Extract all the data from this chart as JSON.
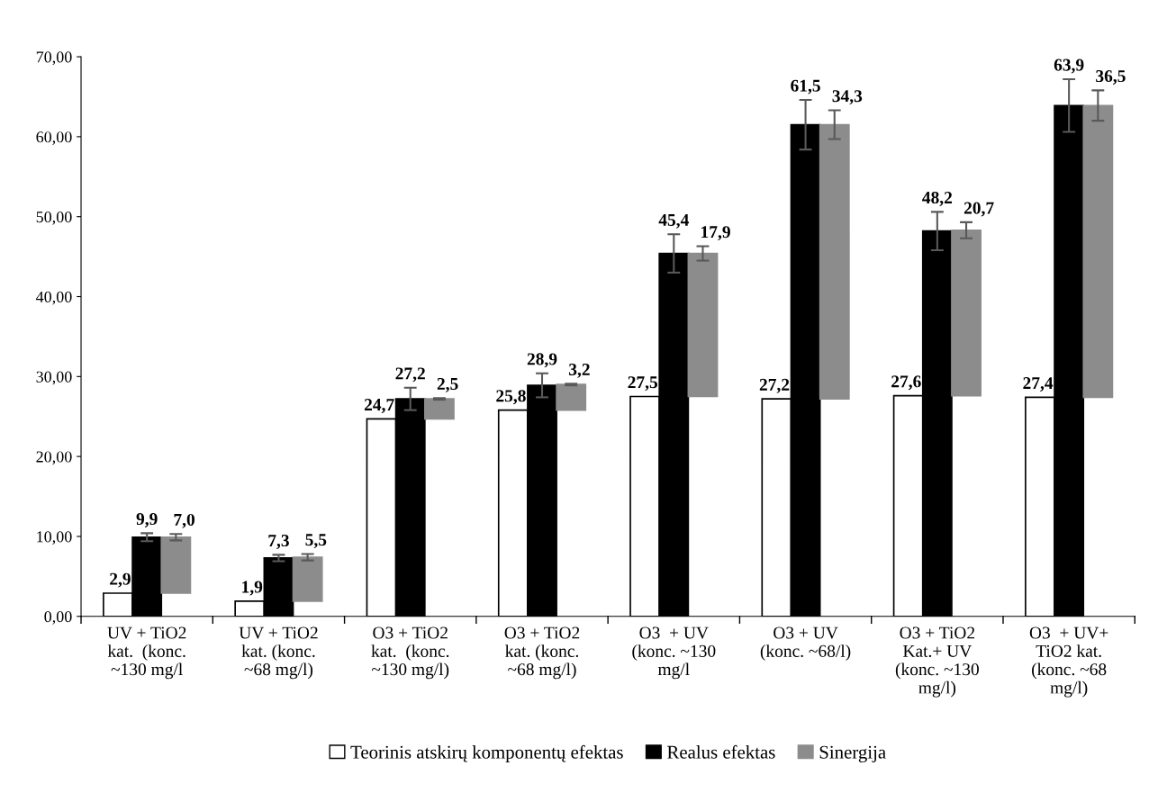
{
  "chart_data": {
    "type": "bar",
    "categories": [
      "UV + TiO2\nkat.  (konc.\n~130 mg/l",
      "UV + TiO2\nkat. (konc.\n~68 mg/l)",
      "O3 + TiO2\nkat.  (konc.\n~130 mg/l)",
      "O3 + TiO2\nkat. (konc.\n~68 mg/l)",
      "O3  + UV\n(konc. ~130\nmg/l",
      "O3 + UV\n(konc. ~68/l)",
      "O3 + TiO2\nKat.+ UV\n(konc. ~130\nmg/l)",
      "O3  + UV+\nTiO2 kat.\n(konc. ~68\nmg/l)"
    ],
    "series": [
      {
        "name": "Teorinis atskirų komponentų efektas",
        "color": "#ffffff",
        "values": [
          2.9,
          1.9,
          24.7,
          25.8,
          27.5,
          27.2,
          27.6,
          27.4
        ],
        "value_labels": [
          "2,9",
          "1,9",
          "24,7",
          "25,8",
          "27,5",
          "27,2",
          "27,6",
          "27,4"
        ]
      },
      {
        "name": "Realus efektas",
        "color": "#000000",
        "values": [
          9.9,
          7.3,
          27.2,
          28.9,
          45.4,
          61.5,
          48.2,
          63.9
        ],
        "errors": [
          0.5,
          0.4,
          1.4,
          1.5,
          2.4,
          3.1,
          2.4,
          3.3
        ],
        "value_labels": [
          "9,9",
          "7,3",
          "27,2",
          "28,9",
          "45,4",
          "61,5",
          "48,2",
          "63,9"
        ]
      },
      {
        "name": "Sinergija",
        "color": "#8c8c8c",
        "values": [
          7.0,
          5.5,
          2.5,
          3.2,
          17.9,
          34.3,
          20.7,
          36.5
        ],
        "base": [
          2.9,
          1.9,
          24.7,
          25.8,
          27.5,
          27.2,
          27.6,
          27.4
        ],
        "errors": [
          0.4,
          0.4,
          0.1,
          0.1,
          0.9,
          1.8,
          1.0,
          1.9
        ],
        "value_labels": [
          "7,0",
          "5,5",
          "2,5",
          "3,2",
          "17,9",
          "34,3",
          "20,7",
          "36,5"
        ]
      }
    ],
    "ylim": [
      0,
      70
    ],
    "yticks": [
      {
        "value": 0,
        "label": "0,00"
      },
      {
        "value": 10,
        "label": "10,00"
      },
      {
        "value": 20,
        "label": "20,00"
      },
      {
        "value": 30,
        "label": "30,00"
      },
      {
        "value": 40,
        "label": "40,00"
      },
      {
        "value": 50,
        "label": "50,00"
      },
      {
        "value": 60,
        "label": "60,00"
      },
      {
        "value": 70,
        "label": "70,00"
      }
    ],
    "grid": false,
    "legend": "bottom"
  }
}
